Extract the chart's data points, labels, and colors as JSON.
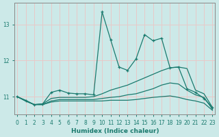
{
  "xlabel": "Humidex (Indice chaleur)",
  "background_color": "#cce9e8",
  "grid_color": "#e8c8c8",
  "line_color": "#1a7a6e",
  "x_values": [
    0,
    1,
    2,
    3,
    4,
    5,
    6,
    7,
    8,
    9,
    10,
    11,
    12,
    13,
    14,
    15,
    16,
    17,
    18,
    19,
    20,
    21,
    22,
    23
  ],
  "series1": [
    11.0,
    10.88,
    10.78,
    10.8,
    11.12,
    11.18,
    11.1,
    11.08,
    11.08,
    11.05,
    13.35,
    12.58,
    11.82,
    11.73,
    12.05,
    12.72,
    12.55,
    12.62,
    11.8,
    11.82,
    11.22,
    11.12,
    10.95,
    10.7
  ],
  "series2": [
    11.0,
    10.9,
    10.78,
    10.8,
    10.95,
    10.98,
    10.98,
    10.98,
    10.98,
    11.0,
    11.08,
    11.18,
    11.25,
    11.32,
    11.42,
    11.52,
    11.62,
    11.72,
    11.8,
    11.82,
    11.78,
    11.18,
    11.08,
    10.7
  ],
  "series3": [
    11.0,
    10.88,
    10.78,
    10.78,
    10.88,
    10.92,
    10.92,
    10.92,
    10.92,
    10.92,
    10.95,
    10.98,
    11.0,
    11.05,
    11.08,
    11.15,
    11.22,
    11.32,
    11.38,
    11.35,
    11.18,
    11.05,
    10.98,
    10.65
  ],
  "series4": [
    11.0,
    10.88,
    10.78,
    10.78,
    10.85,
    10.88,
    10.88,
    10.88,
    10.88,
    10.88,
    10.88,
    10.9,
    10.9,
    10.9,
    10.92,
    10.95,
    10.98,
    11.0,
    11.02,
    10.98,
    10.92,
    10.88,
    10.82,
    10.62
  ],
  "ylim": [
    10.5,
    13.6
  ],
  "yticks": [
    11,
    12,
    13
  ],
  "xticks": [
    0,
    1,
    2,
    3,
    4,
    5,
    6,
    7,
    8,
    9,
    10,
    11,
    12,
    13,
    14,
    15,
    16,
    17,
    18,
    19,
    20,
    21,
    22,
    23
  ]
}
